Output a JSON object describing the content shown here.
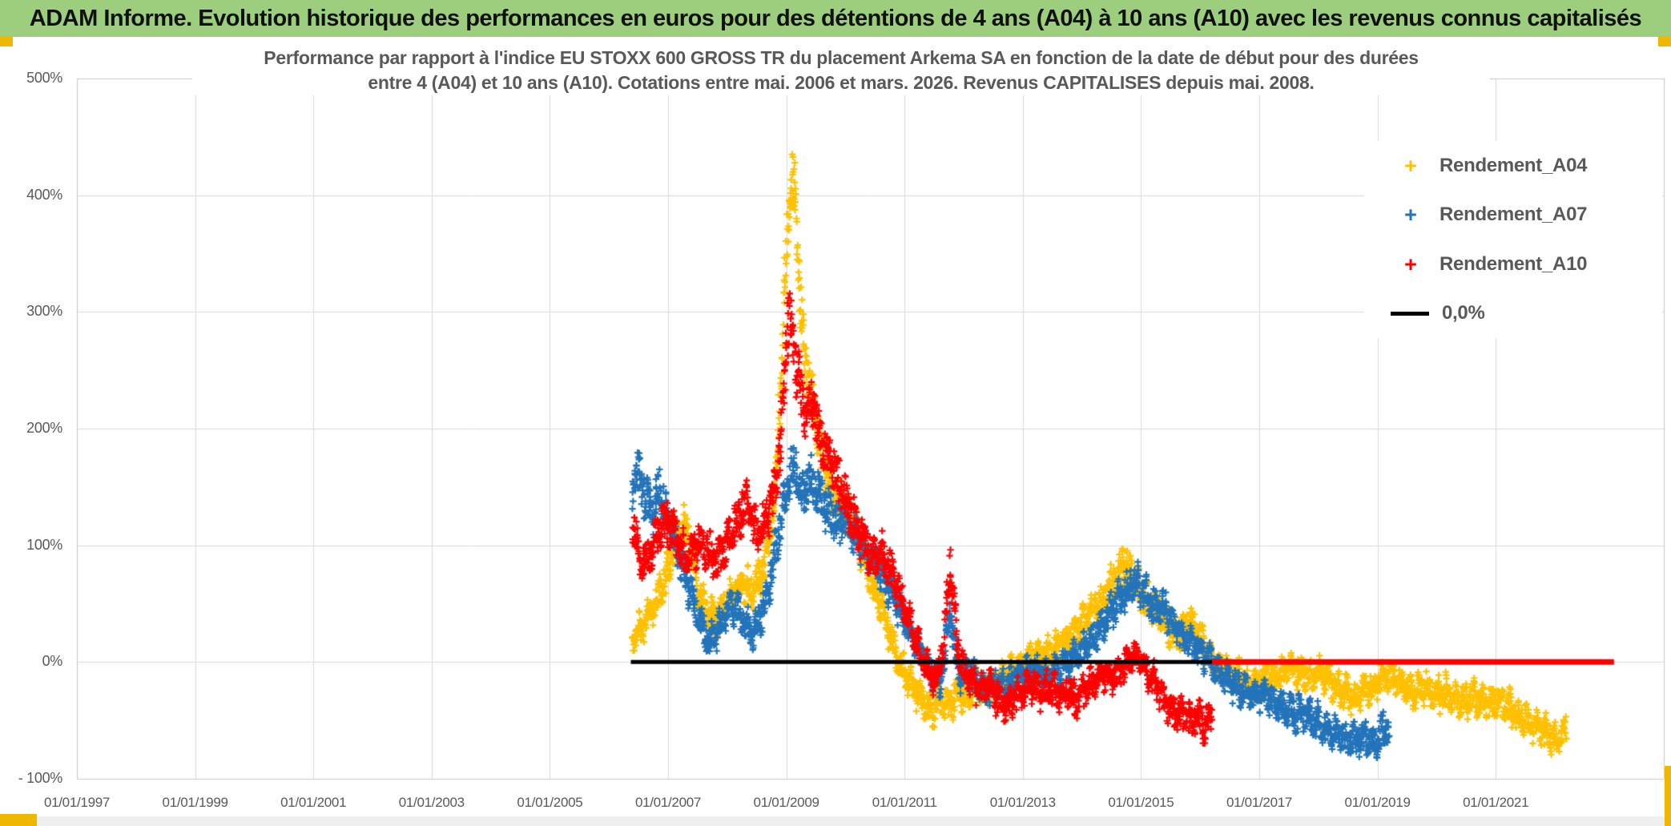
{
  "header": {
    "title": "ADAM Informe. Evolution historique des performances en euros pour des détentions de 4 ans (A04) à 10 ans (A10) avec les revenus connus capitalisés"
  },
  "chart": {
    "title_line1": "Performance par rapport à l'indice EU STOXX 600 GROSS TR  du placement Arkema SA en fonction de la date de début pour des durées",
    "title_line2": "entre 4 (A04) et 10 ans (A10). Cotations entre mai. 2006 et mars. 2026. Revenus CAPITALISES depuis mai. 2008."
  },
  "chart_data": {
    "type": "scatter",
    "title": "Performance par rapport à l'indice EU STOXX 600 GROSS TR du placement Arkema SA en fonction de la date de début pour des durées entre 4 (A04) et 10 ans (A10). Cotations entre mai. 2006 et mars. 2026. Revenus CAPITALISES depuis mai. 2008.",
    "marker": "plus",
    "grid": true,
    "legend_position": "top-right",
    "x_axis": {
      "tick_labels": [
        "01/01/1997",
        "01/01/1999",
        "01/01/2001",
        "01/01/2003",
        "01/01/2005",
        "01/01/2007",
        "01/01/2009",
        "01/01/2011",
        "01/01/2013",
        "01/01/2015",
        "01/01/2017",
        "01/01/2019",
        "01/01/2021"
      ],
      "tick_years": [
        1997,
        1999,
        2001,
        2003,
        2005,
        2007,
        2009,
        2011,
        2013,
        2015,
        2017,
        2019,
        2021
      ],
      "range_years": [
        1997.0,
        2023.8
      ]
    },
    "y_axis": {
      "tick_labels": [
        "500%",
        "400%",
        "300%",
        "200%",
        "100%",
        "0%",
        "- 100%"
      ],
      "tick_values": [
        500,
        400,
        300,
        200,
        100,
        0,
        -100
      ],
      "range": [
        -100,
        500
      ],
      "unit": "%"
    },
    "legend": [
      {
        "label": "Rendement_A04",
        "color": "#FFC000",
        "type": "plus-marker"
      },
      {
        "label": "Rendement_A07",
        "color": "#2273B9",
        "type": "plus-marker"
      },
      {
        "label": "Rendement_A10",
        "color": "#FE0000",
        "type": "plus-marker"
      },
      {
        "label": "0,0%",
        "color": "#000000",
        "type": "line"
      }
    ],
    "series": [
      {
        "name": "Rendement_A04",
        "color": "#FFC000",
        "points_format": [
          "year_decimal",
          "performance_pct_approx"
        ],
        "points": [
          [
            2006.4,
            18
          ],
          [
            2006.55,
            28
          ],
          [
            2006.7,
            42
          ],
          [
            2006.85,
            58
          ],
          [
            2007.0,
            78
          ],
          [
            2007.15,
            105
          ],
          [
            2007.3,
            118
          ],
          [
            2007.4,
            95
          ],
          [
            2007.5,
            62
          ],
          [
            2007.65,
            45
          ],
          [
            2007.8,
            36
          ],
          [
            2007.95,
            45
          ],
          [
            2008.1,
            58
          ],
          [
            2008.25,
            68
          ],
          [
            2008.4,
            62
          ],
          [
            2008.55,
            72
          ],
          [
            2008.7,
            95
          ],
          [
            2008.8,
            140
          ],
          [
            2008.9,
            230
          ],
          [
            2008.98,
            330
          ],
          [
            2009.05,
            395
          ],
          [
            2009.12,
            420
          ],
          [
            2009.18,
            360
          ],
          [
            2009.25,
            300
          ],
          [
            2009.33,
            255
          ],
          [
            2009.42,
            225
          ],
          [
            2009.5,
            210
          ],
          [
            2009.6,
            180
          ],
          [
            2009.72,
            155
          ],
          [
            2009.85,
            135
          ],
          [
            2010.0,
            128
          ],
          [
            2010.15,
            120
          ],
          [
            2010.3,
            95
          ],
          [
            2010.45,
            70
          ],
          [
            2010.6,
            50
          ],
          [
            2010.75,
            25
          ],
          [
            2010.9,
            0
          ],
          [
            2011.05,
            -15
          ],
          [
            2011.2,
            -25
          ],
          [
            2011.35,
            -38
          ],
          [
            2011.48,
            -42
          ],
          [
            2011.6,
            -30
          ],
          [
            2011.75,
            -38
          ],
          [
            2011.9,
            -28
          ],
          [
            2012.05,
            -32
          ],
          [
            2012.2,
            -18
          ],
          [
            2012.35,
            -25
          ],
          [
            2012.5,
            -22
          ],
          [
            2012.65,
            -12
          ],
          [
            2012.8,
            -10
          ],
          [
            2012.95,
            -4
          ],
          [
            2013.1,
            2
          ],
          [
            2013.3,
            6
          ],
          [
            2013.5,
            10
          ],
          [
            2013.7,
            18
          ],
          [
            2013.9,
            28
          ],
          [
            2014.1,
            40
          ],
          [
            2014.3,
            52
          ],
          [
            2014.5,
            65
          ],
          [
            2014.7,
            87
          ],
          [
            2014.85,
            72
          ],
          [
            2015.0,
            60
          ],
          [
            2015.15,
            50
          ],
          [
            2015.3,
            44
          ],
          [
            2015.5,
            25
          ],
          [
            2015.65,
            22
          ],
          [
            2015.8,
            34
          ],
          [
            2015.95,
            26
          ],
          [
            2016.1,
            8
          ],
          [
            2016.3,
            -4
          ],
          [
            2016.5,
            -8
          ],
          [
            2016.7,
            -14
          ],
          [
            2016.9,
            -20
          ],
          [
            2017.1,
            -16
          ],
          [
            2017.3,
            -10
          ],
          [
            2017.5,
            -6
          ],
          [
            2017.7,
            -8
          ],
          [
            2017.9,
            -14
          ],
          [
            2018.05,
            -8
          ],
          [
            2018.2,
            -16
          ],
          [
            2018.4,
            -26
          ],
          [
            2018.6,
            -30
          ],
          [
            2018.8,
            -24
          ],
          [
            2019.0,
            -18
          ],
          [
            2019.2,
            -12
          ],
          [
            2019.4,
            -20
          ],
          [
            2019.6,
            -26
          ],
          [
            2019.8,
            -22
          ],
          [
            2020.0,
            -28
          ],
          [
            2020.2,
            -26
          ],
          [
            2020.4,
            -34
          ],
          [
            2020.6,
            -30
          ],
          [
            2020.8,
            -36
          ],
          [
            2021.0,
            -34
          ],
          [
            2021.2,
            -36
          ],
          [
            2021.4,
            -46
          ],
          [
            2021.6,
            -52
          ],
          [
            2021.8,
            -58
          ],
          [
            2021.95,
            -65
          ],
          [
            2022.05,
            -68
          ],
          [
            2022.2,
            -60
          ]
        ]
      },
      {
        "name": "Rendement_A07",
        "color": "#2273B9",
        "points_format": [
          "year_decimal",
          "performance_pct_approx"
        ],
        "points": [
          [
            2006.4,
            148
          ],
          [
            2006.5,
            162
          ],
          [
            2006.62,
            140
          ],
          [
            2006.75,
            132
          ],
          [
            2006.85,
            148
          ],
          [
            2006.95,
            128
          ],
          [
            2007.08,
            108
          ],
          [
            2007.2,
            88
          ],
          [
            2007.33,
            68
          ],
          [
            2007.45,
            48
          ],
          [
            2007.58,
            30
          ],
          [
            2007.7,
            16
          ],
          [
            2007.82,
            26
          ],
          [
            2007.95,
            38
          ],
          [
            2008.08,
            50
          ],
          [
            2008.2,
            42
          ],
          [
            2008.33,
            30
          ],
          [
            2008.45,
            24
          ],
          [
            2008.58,
            42
          ],
          [
            2008.7,
            62
          ],
          [
            2008.82,
            95
          ],
          [
            2008.92,
            125
          ],
          [
            2009.02,
            150
          ],
          [
            2009.1,
            172
          ],
          [
            2009.2,
            158
          ],
          [
            2009.3,
            140
          ],
          [
            2009.4,
            160
          ],
          [
            2009.5,
            148
          ],
          [
            2009.62,
            138
          ],
          [
            2009.75,
            128
          ],
          [
            2009.88,
            118
          ],
          [
            2010.0,
            122
          ],
          [
            2010.15,
            112
          ],
          [
            2010.3,
            100
          ],
          [
            2010.45,
            92
          ],
          [
            2010.6,
            78
          ],
          [
            2010.75,
            62
          ],
          [
            2010.9,
            48
          ],
          [
            2011.05,
            32
          ],
          [
            2011.2,
            15
          ],
          [
            2011.35,
            2
          ],
          [
            2011.5,
            -12
          ],
          [
            2011.62,
            -18
          ],
          [
            2011.72,
            25
          ],
          [
            2011.78,
            48
          ],
          [
            2011.85,
            10
          ],
          [
            2011.95,
            -12
          ],
          [
            2012.1,
            -8
          ],
          [
            2012.25,
            -20
          ],
          [
            2012.4,
            -26
          ],
          [
            2012.55,
            -16
          ],
          [
            2012.7,
            -22
          ],
          [
            2012.85,
            -14
          ],
          [
            2013.0,
            -10
          ],
          [
            2013.2,
            -6
          ],
          [
            2013.4,
            -12
          ],
          [
            2013.6,
            -6
          ],
          [
            2013.8,
            0
          ],
          [
            2014.0,
            10
          ],
          [
            2014.2,
            22
          ],
          [
            2014.4,
            36
          ],
          [
            2014.6,
            52
          ],
          [
            2014.8,
            64
          ],
          [
            2014.95,
            68
          ],
          [
            2015.1,
            55
          ],
          [
            2015.25,
            44
          ],
          [
            2015.4,
            47
          ],
          [
            2015.55,
            32
          ],
          [
            2015.7,
            22
          ],
          [
            2015.85,
            15
          ],
          [
            2016.0,
            8
          ],
          [
            2016.15,
            2
          ],
          [
            2016.3,
            -8
          ],
          [
            2016.5,
            -16
          ],
          [
            2016.7,
            -24
          ],
          [
            2016.9,
            -30
          ],
          [
            2017.1,
            -27
          ],
          [
            2017.3,
            -36
          ],
          [
            2017.5,
            -44
          ],
          [
            2017.7,
            -42
          ],
          [
            2017.9,
            -50
          ],
          [
            2018.1,
            -55
          ],
          [
            2018.3,
            -60
          ],
          [
            2018.5,
            -65
          ],
          [
            2018.7,
            -68
          ],
          [
            2018.85,
            -64
          ],
          [
            2019.0,
            -66
          ],
          [
            2019.1,
            -60
          ],
          [
            2019.2,
            -57
          ]
        ]
      },
      {
        "name": "Rendement_A10",
        "color": "#FE0000",
        "points_format": [
          "year_decimal",
          "performance_pct_approx"
        ],
        "points": [
          [
            2006.4,
            118
          ],
          [
            2006.5,
            98
          ],
          [
            2006.6,
            85
          ],
          [
            2006.72,
            95
          ],
          [
            2006.85,
            112
          ],
          [
            2006.95,
            120
          ],
          [
            2007.08,
            112
          ],
          [
            2007.2,
            98
          ],
          [
            2007.32,
            88
          ],
          [
            2007.45,
            96
          ],
          [
            2007.55,
            106
          ],
          [
            2007.68,
            94
          ],
          [
            2007.8,
            86
          ],
          [
            2007.92,
            96
          ],
          [
            2008.05,
            110
          ],
          [
            2008.18,
            122
          ],
          [
            2008.3,
            138
          ],
          [
            2008.42,
            124
          ],
          [
            2008.52,
            108
          ],
          [
            2008.65,
            122
          ],
          [
            2008.78,
            142
          ],
          [
            2008.88,
            175
          ],
          [
            2008.96,
            230
          ],
          [
            2009.03,
            300
          ],
          [
            2009.1,
            285
          ],
          [
            2009.17,
            255
          ],
          [
            2009.25,
            228
          ],
          [
            2009.35,
            210
          ],
          [
            2009.43,
            226
          ],
          [
            2009.52,
            204
          ],
          [
            2009.62,
            188
          ],
          [
            2009.75,
            172
          ],
          [
            2009.88,
            156
          ],
          [
            2010.0,
            140
          ],
          [
            2010.12,
            124
          ],
          [
            2010.25,
            108
          ],
          [
            2010.38,
            98
          ],
          [
            2010.5,
            86
          ],
          [
            2010.62,
            94
          ],
          [
            2010.75,
            80
          ],
          [
            2010.88,
            66
          ],
          [
            2011.0,
            48
          ],
          [
            2011.1,
            34
          ],
          [
            2011.2,
            18
          ],
          [
            2011.3,
            4
          ],
          [
            2011.42,
            -8
          ],
          [
            2011.55,
            -16
          ],
          [
            2011.65,
            15
          ],
          [
            2011.72,
            55
          ],
          [
            2011.77,
            88
          ],
          [
            2011.83,
            50
          ],
          [
            2011.9,
            15
          ],
          [
            2012.0,
            -8
          ],
          [
            2012.15,
            -18
          ],
          [
            2012.3,
            -26
          ],
          [
            2012.42,
            -18
          ],
          [
            2012.55,
            -30
          ],
          [
            2012.7,
            -38
          ],
          [
            2012.85,
            -30
          ],
          [
            2013.0,
            -25
          ],
          [
            2013.15,
            -20
          ],
          [
            2013.3,
            -28
          ],
          [
            2013.45,
            -22
          ],
          [
            2013.6,
            -30
          ],
          [
            2013.75,
            -26
          ],
          [
            2013.9,
            -32
          ],
          [
            2014.05,
            -24
          ],
          [
            2014.2,
            -17
          ],
          [
            2014.35,
            -11
          ],
          [
            2014.5,
            -15
          ],
          [
            2014.65,
            -7
          ],
          [
            2014.8,
            0
          ],
          [
            2014.9,
            7
          ],
          [
            2015.0,
            1
          ],
          [
            2015.1,
            -9
          ],
          [
            2015.22,
            -17
          ],
          [
            2015.35,
            -27
          ],
          [
            2015.48,
            -37
          ],
          [
            2015.6,
            -46
          ],
          [
            2015.72,
            -43
          ],
          [
            2015.85,
            -50
          ],
          [
            2015.95,
            -46
          ],
          [
            2016.05,
            -51
          ],
          [
            2016.2,
            -49
          ]
        ]
      }
    ],
    "reference_lines": [
      {
        "name": "0,0%",
        "value": 0,
        "color": "#000000",
        "x_start": 2006.37,
        "x_end": 2016.2,
        "width": 5
      },
      {
        "name": "0,0%-extension",
        "value": 0,
        "color": "#FF0000",
        "x_start": 2016.2,
        "x_end": 2023.0,
        "width": 7
      }
    ]
  }
}
